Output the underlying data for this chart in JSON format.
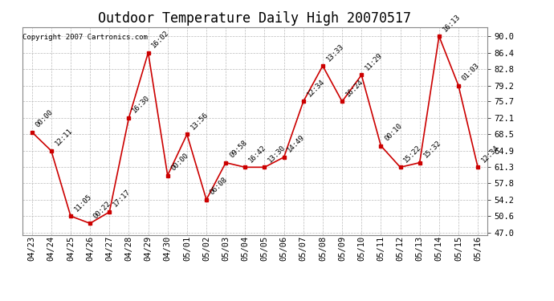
{
  "title": "Outdoor Temperature Daily High 20070517",
  "copyright": "Copyright 2007 Cartronics.com",
  "dates": [
    "04/23",
    "04/24",
    "04/25",
    "04/26",
    "04/27",
    "04/28",
    "04/29",
    "04/30",
    "05/01",
    "05/02",
    "05/03",
    "05/04",
    "05/05",
    "05/06",
    "05/07",
    "05/08",
    "05/09",
    "05/10",
    "05/11",
    "05/12",
    "05/13",
    "05/14",
    "05/15",
    "05/16"
  ],
  "values": [
    69.0,
    64.9,
    50.6,
    49.0,
    51.5,
    72.1,
    86.4,
    59.5,
    68.5,
    54.2,
    62.3,
    61.3,
    61.3,
    63.5,
    75.7,
    83.5,
    75.7,
    81.5,
    66.0,
    61.3,
    62.3,
    90.0,
    79.2,
    61.3
  ],
  "labels": [
    "00:00",
    "12:11",
    "11:05",
    "00:22",
    "17:17",
    "16:30",
    "16:02",
    "00:00",
    "13:56",
    "06:08",
    "09:58",
    "16:42",
    "13:30",
    "14:49",
    "12:34",
    "13:33",
    "16:24",
    "11:29",
    "00:10",
    "15:22",
    "15:32",
    "16:13",
    "01:03",
    "12:34"
  ],
  "yticks": [
    47.0,
    50.6,
    54.2,
    57.8,
    61.3,
    64.9,
    68.5,
    72.1,
    75.7,
    79.2,
    82.8,
    86.4,
    90.0
  ],
  "ymin": 47.0,
  "ymax": 90.0,
  "line_color": "#cc0000",
  "marker_color": "#cc0000",
  "bg_color": "#ffffff",
  "grid_color": "#bbbbbb",
  "title_fontsize": 12,
  "label_fontsize": 6.5,
  "axis_fontsize": 7.5,
  "copyright_fontsize": 6.5
}
